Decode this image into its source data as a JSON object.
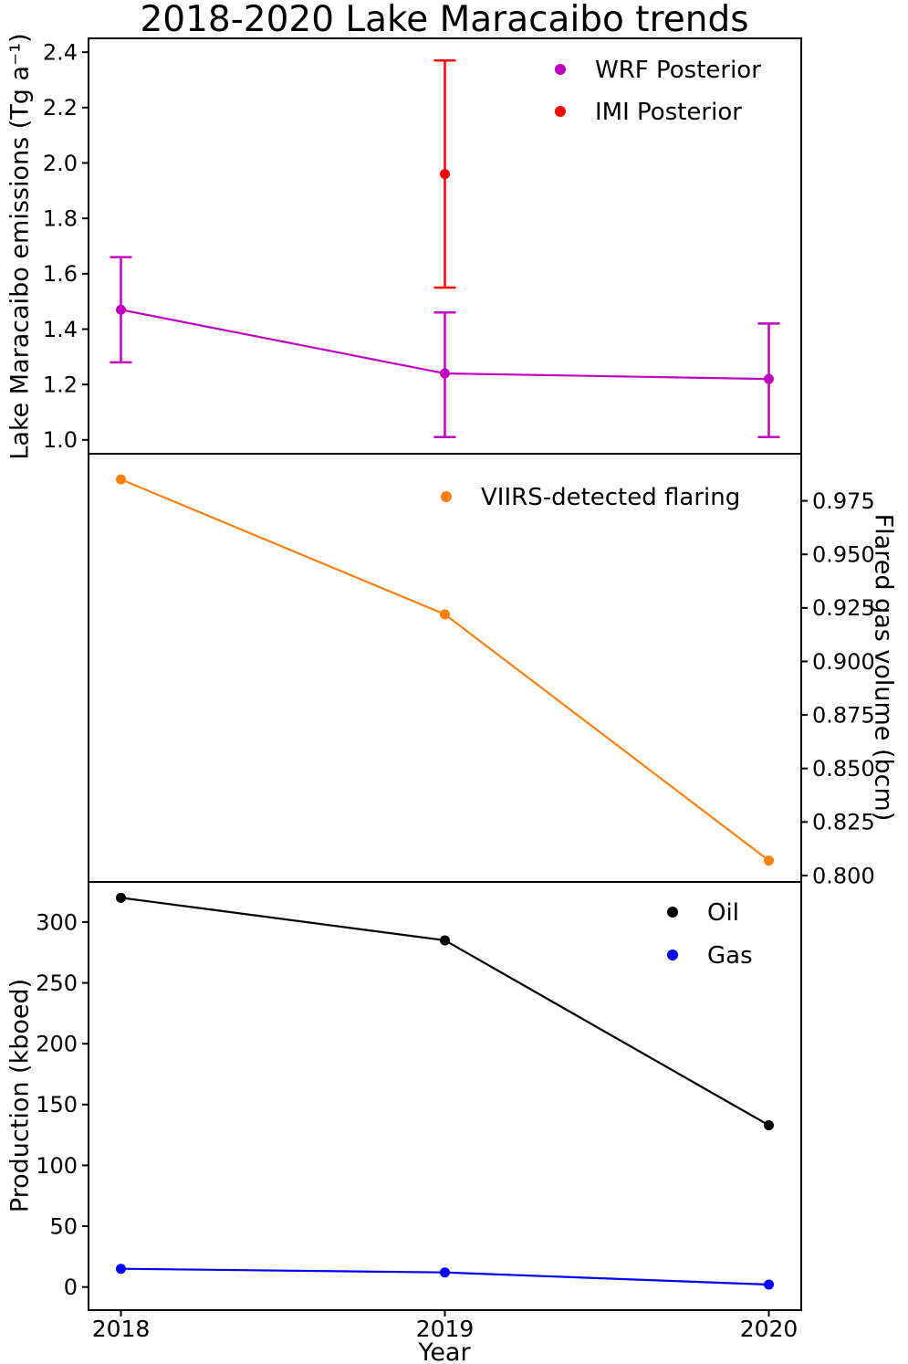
{
  "title": "2018-2020 Lake Maracaibo trends",
  "xlabel": "Year",
  "xlim": [
    2017.9,
    2020.1
  ],
  "colors": {
    "wrf": "#bf00bf",
    "imi": "#ff0000",
    "viirs": "#ff7f0e",
    "oil": "#000000",
    "gas": "#0000ff",
    "axis": "#000000",
    "background": "#ffffff"
  },
  "chart_data": [
    {
      "type": "line",
      "panel": "emissions",
      "ylabel": "Lake Maracaibo emissions (Tg a⁻¹)",
      "axis_side": "left",
      "ylim": [
        0.95,
        2.45
      ],
      "yticks": [
        1.0,
        1.2,
        1.4,
        1.6,
        1.8,
        2.0,
        2.2,
        2.4
      ],
      "ytick_labels": [
        "1.0",
        "1.2",
        "1.4",
        "1.6",
        "1.8",
        "2.0",
        "2.2",
        "2.4"
      ],
      "legend_position": "upper right",
      "grid": false,
      "series": [
        {
          "name": "WRF Posterior",
          "color": "#bf00bf",
          "x": [
            2018,
            2019,
            2020
          ],
          "values": [
            1.47,
            1.24,
            1.22
          ],
          "err_low": [
            1.28,
            1.01,
            1.01
          ],
          "err_high": [
            1.66,
            1.46,
            1.42
          ],
          "line": true,
          "errorbars": true
        },
        {
          "name": "IMI Posterior",
          "color": "#ff0000",
          "x": [
            2019
          ],
          "values": [
            1.96
          ],
          "err_low": [
            1.55
          ],
          "err_high": [
            2.37
          ],
          "line": false,
          "errorbars": true
        }
      ]
    },
    {
      "type": "line",
      "panel": "flaring",
      "ylabel": "Flared gas volume (bcm)",
      "axis_side": "right",
      "ylim": [
        0.797,
        0.997
      ],
      "yticks": [
        0.8,
        0.825,
        0.85,
        0.875,
        0.9,
        0.925,
        0.95,
        0.975
      ],
      "ytick_labels": [
        "0.800",
        "0.825",
        "0.850",
        "0.875",
        "0.900",
        "0.925",
        "0.950",
        "0.975"
      ],
      "legend_position": "upper right",
      "grid": false,
      "series": [
        {
          "name": "VIIRS-detected flaring",
          "color": "#ff7f0e",
          "x": [
            2018,
            2019,
            2020
          ],
          "values": [
            0.985,
            0.922,
            0.807
          ],
          "line": true,
          "errorbars": false
        }
      ]
    },
    {
      "type": "line",
      "panel": "production",
      "ylabel": "Production (kboed)",
      "axis_side": "left",
      "ylim": [
        -19,
        333
      ],
      "yticks": [
        0,
        50,
        100,
        150,
        200,
        250,
        300
      ],
      "ytick_labels": [
        "0",
        "50",
        "100",
        "150",
        "200",
        "250",
        "300"
      ],
      "xticks": [
        2018,
        2019,
        2020
      ],
      "xtick_labels": [
        "2018",
        "2019",
        "2020"
      ],
      "xlabel": "Year",
      "legend_position": "upper right",
      "grid": false,
      "series": [
        {
          "name": "Oil",
          "color": "#000000",
          "x": [
            2018,
            2019,
            2020
          ],
          "values": [
            320,
            285,
            133
          ],
          "line": true,
          "errorbars": false
        },
        {
          "name": "Gas",
          "color": "#0000ff",
          "x": [
            2018,
            2019,
            2020
          ],
          "values": [
            15,
            12,
            2
          ],
          "line": true,
          "errorbars": false
        }
      ]
    }
  ]
}
